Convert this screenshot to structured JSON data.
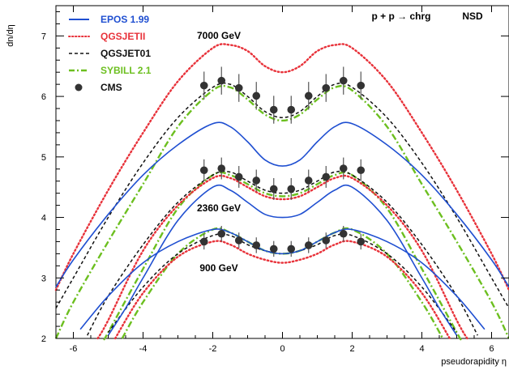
{
  "chart_data": {
    "type": "line",
    "xlabel": "pseudorapidity η",
    "ylabel": "dn/dη",
    "xlim": [
      -6.5,
      6.5
    ],
    "ylim": [
      2,
      7.5
    ],
    "xticks": [
      -6,
      -4,
      -2,
      0,
      2,
      4,
      6
    ],
    "yticks": [
      2,
      3,
      4,
      5,
      6,
      7
    ],
    "grid": false,
    "legend_position": "top-left",
    "annotations": {
      "process": "p + p → chrg",
      "selection": "NSD",
      "energy_7000": "7000 GeV",
      "energy_2360": "2360 GeV",
      "energy_900": "900 GeV"
    },
    "legend": [
      {
        "label": "EPOS 1.99",
        "color": "#1f4fd1",
        "style": "solid"
      },
      {
        "label": "QGSJETII",
        "color": "#e8323a",
        "style": "dotted"
      },
      {
        "label": "QGSJET01",
        "color": "#111111",
        "style": "dashed"
      },
      {
        "label": "SYBILL 2.1",
        "color": "#6cbf1f",
        "style": "dashdot"
      },
      {
        "label": "CMS",
        "color": "#333333",
        "style": "marker"
      }
    ],
    "series": [
      {
        "name": "EPOS 1.99",
        "energy": "7000 GeV",
        "color": "#1f4fd1",
        "style": "solid",
        "x": [
          -6.5,
          -6,
          -5,
          -4,
          -3,
          -2,
          -1.5,
          -1,
          -0.5,
          0,
          0.5,
          1,
          1.5,
          2,
          3,
          4,
          5,
          6,
          6.5
        ],
        "y": [
          2.85,
          3.3,
          4.05,
          4.7,
          5.2,
          5.55,
          5.5,
          5.25,
          4.95,
          4.85,
          4.95,
          5.25,
          5.5,
          5.55,
          5.2,
          4.7,
          4.05,
          3.3,
          2.85
        ]
      },
      {
        "name": "EPOS 1.99",
        "energy": "2360 GeV",
        "color": "#1f4fd1",
        "style": "solid",
        "x": [
          -5,
          -4.5,
          -4,
          -3,
          -2,
          -1.5,
          -1,
          -0.5,
          0,
          0.5,
          1,
          1.5,
          2,
          3,
          4,
          4.5,
          5
        ],
        "y": [
          2.05,
          2.5,
          3.0,
          3.95,
          4.5,
          4.45,
          4.25,
          4.05,
          4.0,
          4.05,
          4.25,
          4.45,
          4.5,
          3.95,
          3.0,
          2.5,
          2.05
        ]
      },
      {
        "name": "EPOS 1.99",
        "energy": "900 GeV",
        "color": "#1f4fd1",
        "style": "solid",
        "x": [
          -5.8,
          -5,
          -4,
          -3,
          -2,
          -1.5,
          -1,
          -0.5,
          0,
          0.5,
          1,
          1.5,
          2,
          3,
          4,
          5,
          5.8
        ],
        "y": [
          2.15,
          2.7,
          3.25,
          3.6,
          3.8,
          3.75,
          3.6,
          3.45,
          3.4,
          3.45,
          3.6,
          3.75,
          3.8,
          3.6,
          3.25,
          2.7,
          2.15
        ]
      },
      {
        "name": "QGSJETII",
        "energy": "7000 GeV",
        "color": "#e8323a",
        "style": "dotted",
        "x": [
          -6.5,
          -6,
          -5,
          -4,
          -3,
          -2,
          -1.5,
          -1,
          -0.5,
          0,
          0.5,
          1,
          1.5,
          2,
          3,
          4,
          5,
          6,
          6.5
        ],
        "y": [
          2.8,
          3.4,
          4.45,
          5.4,
          6.25,
          6.8,
          6.85,
          6.75,
          6.5,
          6.4,
          6.5,
          6.75,
          6.85,
          6.8,
          6.25,
          5.4,
          4.45,
          3.4,
          2.8
        ]
      },
      {
        "name": "QGSJETII",
        "energy": "2360 GeV",
        "color": "#e8323a",
        "style": "dotted",
        "x": [
          -5.3,
          -5,
          -4,
          -3,
          -2,
          -1.5,
          -1,
          -0.5,
          0,
          0.5,
          1,
          1.5,
          2,
          3,
          4,
          5,
          5.3
        ],
        "y": [
          2.0,
          2.3,
          3.45,
          4.2,
          4.65,
          4.65,
          4.5,
          4.35,
          4.3,
          4.35,
          4.5,
          4.65,
          4.65,
          4.2,
          3.45,
          2.3,
          2.0
        ]
      },
      {
        "name": "QGSJETII",
        "energy": "900 GeV",
        "color": "#e8323a",
        "style": "dotted",
        "x": [
          -4.8,
          -4,
          -3,
          -2,
          -1.5,
          -1,
          -0.5,
          0,
          0.5,
          1,
          1.5,
          2,
          3,
          4,
          4.8
        ],
        "y": [
          2.0,
          2.75,
          3.35,
          3.6,
          3.55,
          3.4,
          3.3,
          3.25,
          3.3,
          3.4,
          3.55,
          3.6,
          3.35,
          2.75,
          2.0
        ]
      },
      {
        "name": "QGSJET01",
        "energy": "7000 GeV",
        "color": "#111111",
        "style": "dashed",
        "x": [
          -6.5,
          -6,
          -5,
          -4,
          -3,
          -2,
          -1.5,
          -1,
          -0.5,
          0,
          0.5,
          1,
          1.5,
          2,
          3,
          4,
          5,
          6,
          6.5
        ],
        "y": [
          2.5,
          3.0,
          4.0,
          4.9,
          5.65,
          6.15,
          6.2,
          6.0,
          5.75,
          5.65,
          5.75,
          6.0,
          6.2,
          6.15,
          5.65,
          4.9,
          4.0,
          3.0,
          2.5
        ]
      },
      {
        "name": "QGSJET01",
        "energy": "2360 GeV",
        "color": "#111111",
        "style": "dashed",
        "x": [
          -5.6,
          -5,
          -4,
          -3,
          -2,
          -1.5,
          -1,
          -0.5,
          0,
          0.5,
          1,
          1.5,
          2,
          3,
          4,
          5,
          5.6
        ],
        "y": [
          2.05,
          2.7,
          3.55,
          4.25,
          4.7,
          4.75,
          4.6,
          4.45,
          4.4,
          4.45,
          4.6,
          4.75,
          4.7,
          4.25,
          3.55,
          2.7,
          2.05
        ]
      },
      {
        "name": "QGSJET01",
        "energy": "900 GeV",
        "color": "#111111",
        "style": "dashed",
        "x": [
          -5,
          -4,
          -3,
          -2,
          -1.5,
          -1,
          -0.5,
          0,
          0.5,
          1,
          1.5,
          2,
          3,
          4,
          5
        ],
        "y": [
          2.1,
          2.85,
          3.4,
          3.7,
          3.7,
          3.55,
          3.45,
          3.4,
          3.45,
          3.55,
          3.7,
          3.7,
          3.4,
          2.85,
          2.1
        ]
      },
      {
        "name": "SYBILL 2.1",
        "energy": "7000 GeV",
        "color": "#6cbf1f",
        "style": "dashdot",
        "x": [
          -6.5,
          -6,
          -5,
          -4,
          -3,
          -2,
          -1.5,
          -1,
          -0.5,
          0,
          0.5,
          1,
          1.5,
          2,
          3,
          4,
          5,
          6,
          6.5
        ],
        "y": [
          2.0,
          2.6,
          3.6,
          4.55,
          5.5,
          6.1,
          6.15,
          5.95,
          5.7,
          5.6,
          5.7,
          5.95,
          6.15,
          6.1,
          5.5,
          4.55,
          3.6,
          2.6,
          2.0
        ]
      },
      {
        "name": "SYBILL 2.1",
        "energy": "2360 GeV",
        "color": "#6cbf1f",
        "style": "dashdot",
        "x": [
          -5.1,
          -5,
          -4,
          -3,
          -2,
          -1.5,
          -1,
          -0.5,
          0,
          0.5,
          1,
          1.5,
          2,
          3,
          4,
          5,
          5.1
        ],
        "y": [
          2.0,
          2.1,
          3.15,
          4.15,
          4.7,
          4.7,
          4.55,
          4.4,
          4.35,
          4.4,
          4.55,
          4.7,
          4.7,
          4.15,
          3.15,
          2.1,
          2.0
        ]
      },
      {
        "name": "SYBILL 2.1",
        "energy": "900 GeV",
        "color": "#6cbf1f",
        "style": "dashdot",
        "x": [
          -4.6,
          -4,
          -3,
          -2,
          -1.5,
          -1,
          -0.5,
          0,
          0.5,
          1,
          1.5,
          2,
          3,
          4,
          4.6
        ],
        "y": [
          2.0,
          2.6,
          3.4,
          3.8,
          3.75,
          3.6,
          3.45,
          3.4,
          3.45,
          3.6,
          3.75,
          3.8,
          3.4,
          2.6,
          2.0
        ]
      }
    ],
    "cms_points": [
      {
        "energy": "7000 GeV",
        "x": [
          -2.25,
          -1.75,
          -1.25,
          -0.75,
          -0.25,
          0.25,
          0.75,
          1.25,
          1.75,
          2.25
        ],
        "y": [
          6.18,
          6.26,
          6.14,
          6.01,
          5.78,
          5.78,
          6.01,
          6.14,
          6.26,
          6.18
        ],
        "err": 0.23
      },
      {
        "energy": "2360 GeV",
        "x": [
          -2.25,
          -1.75,
          -1.25,
          -0.75,
          -0.25,
          0.25,
          0.75,
          1.25,
          1.75,
          2.25
        ],
        "y": [
          4.78,
          4.81,
          4.67,
          4.61,
          4.47,
          4.47,
          4.61,
          4.67,
          4.81,
          4.78
        ],
        "err": 0.18
      },
      {
        "energy": "900 GeV",
        "x": [
          -2.25,
          -1.75,
          -1.25,
          -0.75,
          -0.25,
          0.25,
          0.75,
          1.25,
          1.75,
          2.25
        ],
        "y": [
          3.6,
          3.73,
          3.62,
          3.54,
          3.48,
          3.48,
          3.54,
          3.62,
          3.73,
          3.6
        ],
        "err": 0.13
      }
    ]
  }
}
